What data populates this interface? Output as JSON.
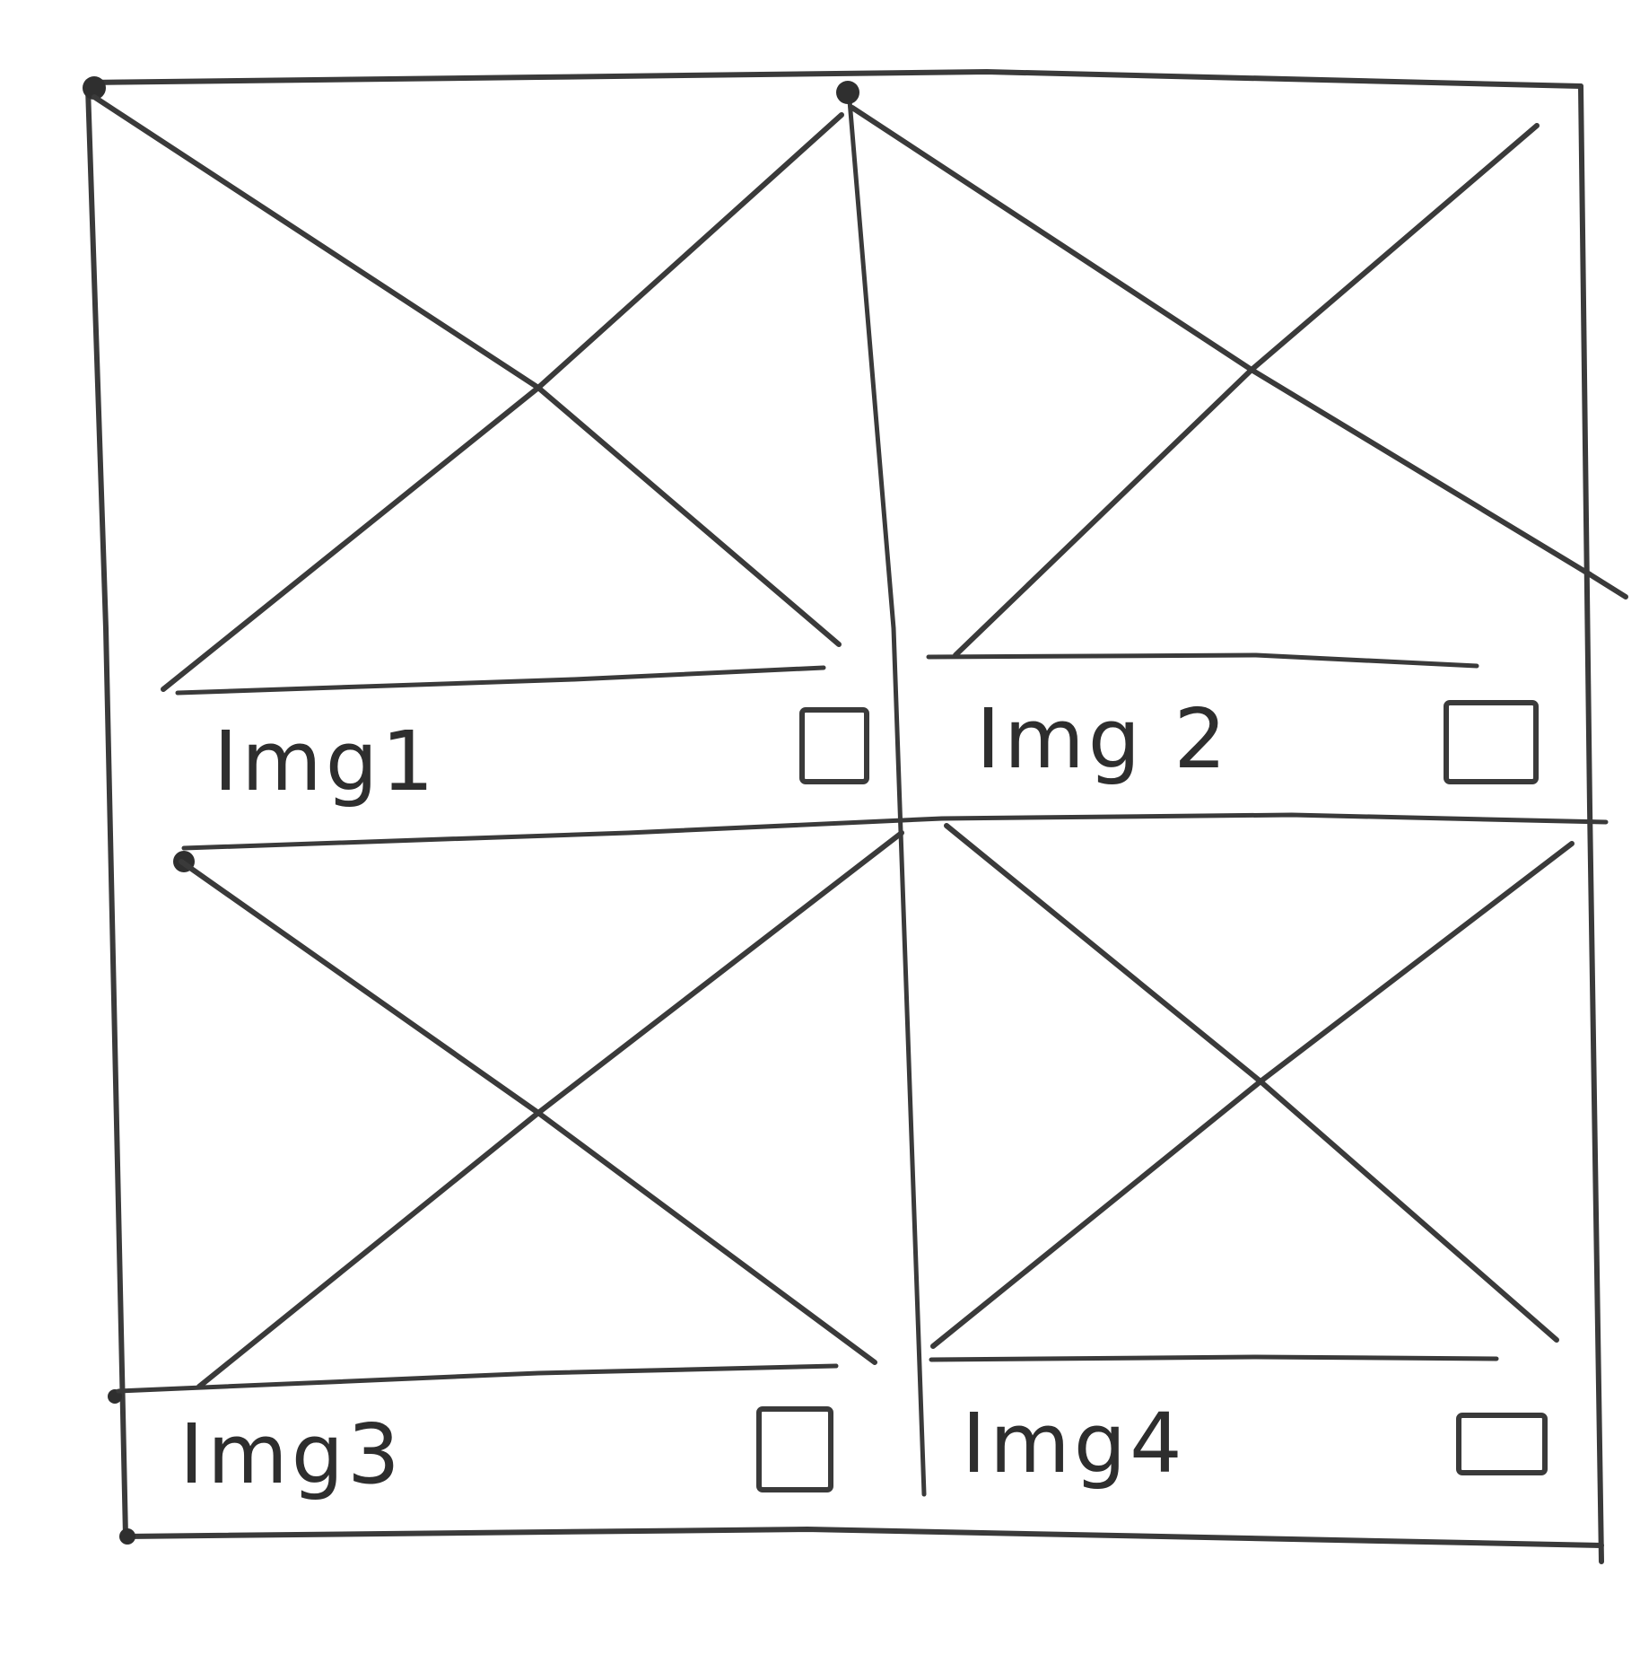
{
  "colors": {
    "ink": "#3a3a3a",
    "paper": "#ffffff"
  },
  "grid": {
    "columns": 2,
    "rows": 2
  },
  "cards": [
    {
      "label": "Img1",
      "placeholder": "image-placeholder-icon",
      "checked": false
    },
    {
      "label": "Img 2",
      "placeholder": "image-placeholder-icon",
      "checked": false
    },
    {
      "label": "Img3",
      "placeholder": "image-placeholder-icon",
      "checked": false
    },
    {
      "label": "Img4",
      "placeholder": "image-placeholder-icon",
      "checked": false
    }
  ]
}
